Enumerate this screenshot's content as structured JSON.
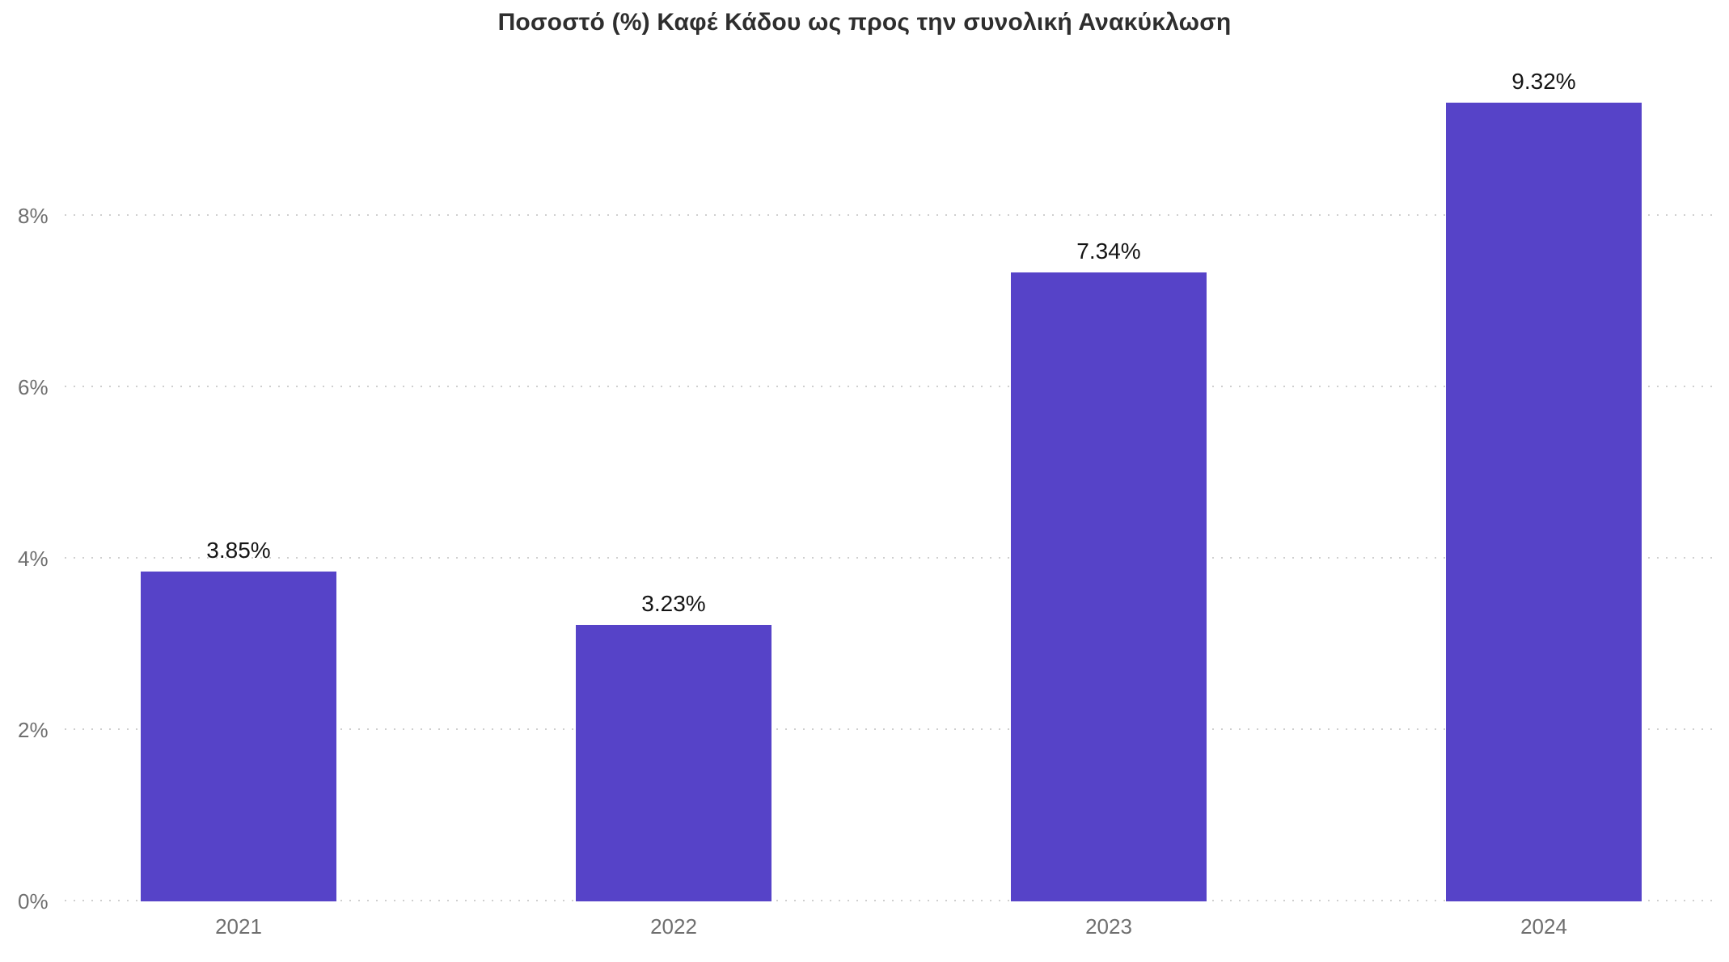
{
  "chart_data": {
    "type": "bar",
    "title": "Ποσοστό (%) Καφέ Κάδου ως προς την συνολική Ανακύκλωση",
    "categories": [
      "2021",
      "2022",
      "2023",
      "2024"
    ],
    "values": [
      3.85,
      3.23,
      7.34,
      9.32
    ],
    "value_labels": [
      "3.85%",
      "3.23%",
      "7.34%",
      "9.32%"
    ],
    "xlabel": "",
    "ylabel": "",
    "yticks": [
      0,
      2,
      4,
      6,
      8
    ],
    "ytick_labels": [
      "0%",
      "2%",
      "4%",
      "6%",
      "8%"
    ],
    "ylim": [
      0,
      9.717
    ],
    "grid": "horizontal-dotted",
    "legend_position": "none",
    "colors": {
      "bar": "#5643C8",
      "title_text": "#2e2e2e",
      "value_label_text": "#141414",
      "tick_label_text": "#6f6f6f",
      "gridline": "#cfcfcf",
      "background": "#ffffff"
    }
  }
}
